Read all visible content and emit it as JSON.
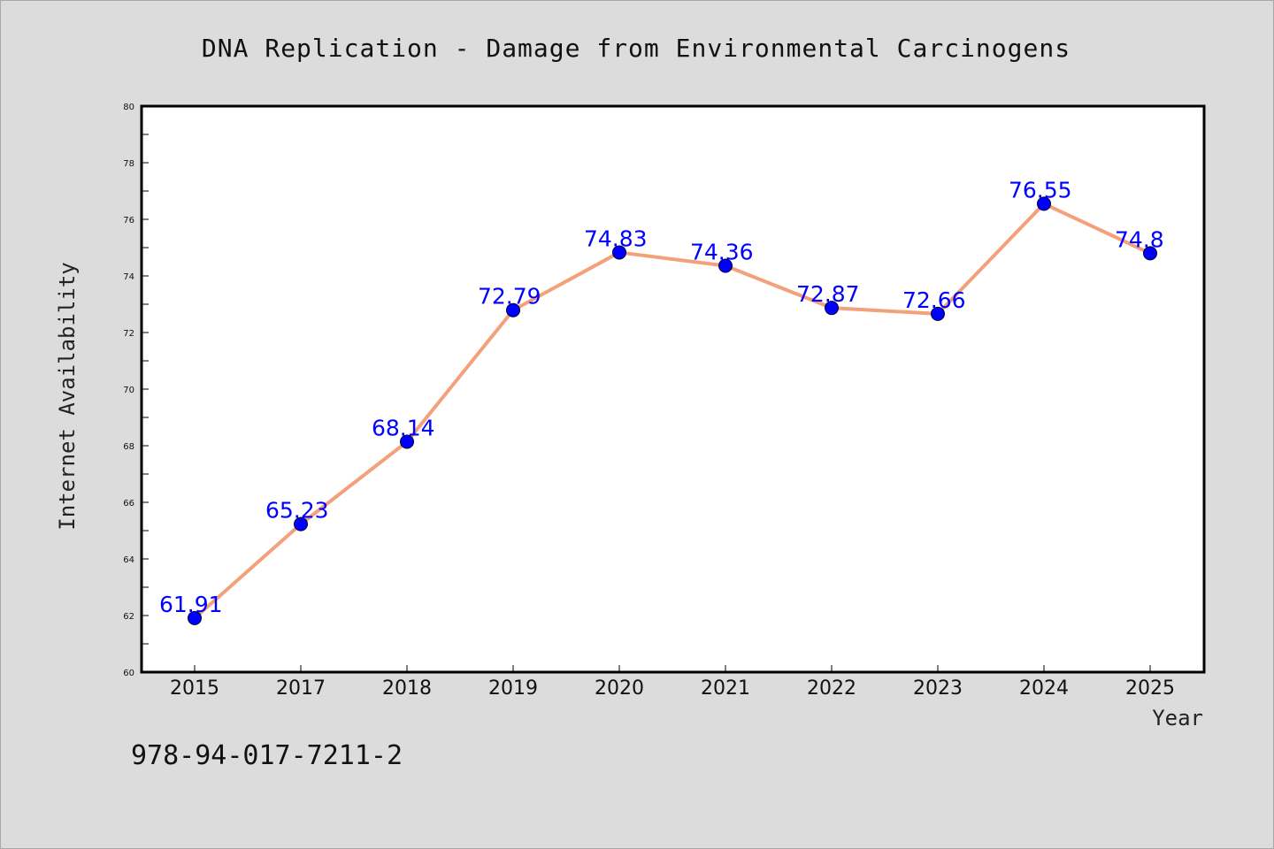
{
  "chart_data": {
    "type": "line",
    "title": "DNA Replication - Damage from Environmental Carcinogens",
    "xlabel": "Year",
    "ylabel": "Internet Availability",
    "categories": [
      "2015",
      "2017",
      "2018",
      "2019",
      "2020",
      "2021",
      "2022",
      "2023",
      "2024",
      "2025"
    ],
    "series": [
      {
        "values": [
          61.91,
          65.23,
          68.14,
          72.79,
          74.83,
          74.36,
          72.87,
          72.66,
          76.55,
          74.8
        ],
        "labels": [
          "61.91",
          "65.23",
          "68.14",
          "72.79",
          "74.83",
          "74.36",
          "72.87",
          "72.66",
          "76.55",
          "74.8"
        ],
        "line_color": "#f4a07a",
        "marker_color": "#0000ff"
      }
    ],
    "ylim": [
      60,
      80
    ],
    "yticks": [
      "60",
      "62",
      "64",
      "66",
      "68",
      "70",
      "72",
      "74",
      "76",
      "78",
      "80"
    ],
    "grid": false,
    "legend": "none"
  },
  "footer": {
    "isbn": "978-94-017-7211-2"
  },
  "colors": {
    "background": "#dcdcdc",
    "plot_background": "#ffffff",
    "line": "#f4a07a",
    "marker": "#0000ff",
    "data_label": "#0000ff"
  }
}
